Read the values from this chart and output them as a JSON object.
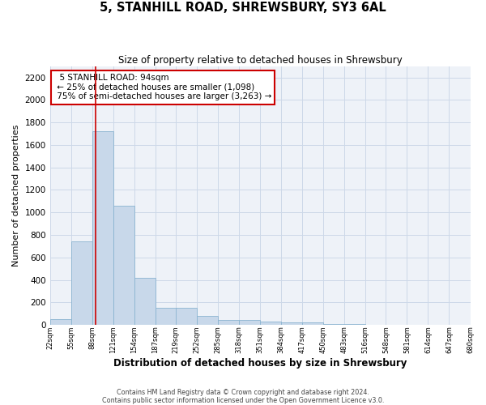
{
  "title": "5, STANHILL ROAD, SHREWSBURY, SY3 6AL",
  "subtitle": "Size of property relative to detached houses in Shrewsbury",
  "xlabel": "Distribution of detached houses by size in Shrewsbury",
  "ylabel": "Number of detached properties",
  "bar_left_edges": [
    22,
    55,
    88,
    121,
    154,
    187,
    219,
    252,
    285,
    318,
    351,
    384,
    417,
    450,
    483,
    516,
    548,
    581,
    614,
    647
  ],
  "bar_heights": [
    50,
    740,
    1720,
    1060,
    420,
    155,
    155,
    80,
    45,
    45,
    30,
    20,
    20,
    5,
    5,
    2,
    2,
    2,
    2,
    2
  ],
  "bin_width": 33,
  "bar_color": "#c8d8ea",
  "bar_edge_color": "#8ab4d0",
  "property_size": 94,
  "vline_color": "#cc0000",
  "annotation_text": "  5 STANHILL ROAD: 94sqm  \n ← 25% of detached houses are smaller (1,098)\n 75% of semi-detached houses are larger (3,263) →",
  "annotation_box_color": "#ffffff",
  "annotation_box_edge_color": "#cc0000",
  "annotation_fontsize": 7.5,
  "xlim_left": 22,
  "xlim_right": 680,
  "ylim_top": 2300,
  "yticks": [
    0,
    200,
    400,
    600,
    800,
    1000,
    1200,
    1400,
    1600,
    1800,
    2000,
    2200
  ],
  "xtick_labels": [
    "22sqm",
    "55sqm",
    "88sqm",
    "121sqm",
    "154sqm",
    "187sqm",
    "219sqm",
    "252sqm",
    "285sqm",
    "318sqm",
    "351sqm",
    "384sqm",
    "417sqm",
    "450sqm",
    "483sqm",
    "516sqm",
    "548sqm",
    "581sqm",
    "614sqm",
    "647sqm",
    "680sqm"
  ],
  "xtick_positions": [
    22,
    55,
    88,
    121,
    154,
    187,
    219,
    252,
    285,
    318,
    351,
    384,
    417,
    450,
    483,
    516,
    548,
    581,
    614,
    647,
    680
  ],
  "grid_color": "#ccd8e8",
  "background_color": "#eef2f8",
  "footer_line1": "Contains HM Land Registry data © Crown copyright and database right 2024.",
  "footer_line2": "Contains public sector information licensed under the Open Government Licence v3.0."
}
